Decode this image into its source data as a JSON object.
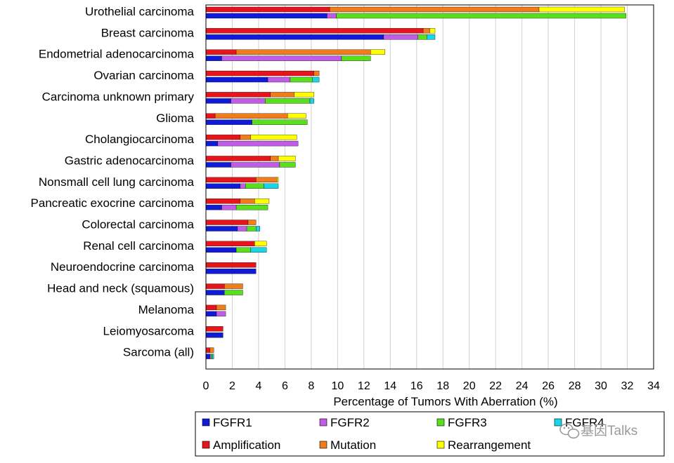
{
  "chart_data": {
    "type": "bar",
    "orientation": "horizontal",
    "stacked": true,
    "xlabel": "Percentage of Tumors With Aberration (%)",
    "ylabel": "",
    "xlim": [
      0,
      34
    ],
    "xticks": [
      0,
      2,
      4,
      6,
      8,
      10,
      12,
      14,
      16,
      18,
      20,
      22,
      24,
      26,
      28,
      30,
      32,
      34
    ],
    "grid": true,
    "legend_position": "bottom",
    "categories": [
      "Urothelial carcinoma",
      "Breast carcinoma",
      "Endometrial adenocarcinoma",
      "Ovarian carcinoma",
      "Carcinoma unknown primary",
      "Glioma",
      "Cholangiocarcinoma",
      "Gastric adenocarcinoma",
      "Nonsmall cell lung carcinoma",
      "Pancreatic exocrine carcinoma",
      "Colorectal carcinoma",
      "Renal cell carcinoma",
      "Neuroendocrine carcinoma",
      "Head and neck (squamous)",
      "Melanoma",
      "Leiomyosarcoma",
      "Sarcoma (all)"
    ],
    "aberration_series": [
      {
        "name": "Amplification",
        "color": "#e8141b",
        "values": [
          9.4,
          16.5,
          2.3,
          8.2,
          4.9,
          0.7,
          2.6,
          4.9,
          3.8,
          2.6,
          3.2,
          3.7,
          3.8,
          1.4,
          0.8,
          1.3,
          0.3
        ]
      },
      {
        "name": "Mutation",
        "color": "#f07c1a",
        "values": [
          15.9,
          0.5,
          10.2,
          0.4,
          1.8,
          5.5,
          0.8,
          0.6,
          1.6,
          1.1,
          0.6,
          0.0,
          0.0,
          1.4,
          0.7,
          0.0,
          0.3
        ]
      },
      {
        "name": "Rearrangement",
        "color": "#ffff00",
        "values": [
          6.5,
          0.4,
          1.1,
          0.0,
          1.5,
          1.4,
          3.5,
          1.3,
          0.1,
          1.1,
          0.0,
          0.9,
          0.0,
          0.0,
          0.0,
          0.0,
          0.0
        ]
      }
    ],
    "gene_series": [
      {
        "name": "FGFR1",
        "color": "#0f1bd6",
        "values": [
          9.2,
          13.5,
          1.2,
          4.7,
          1.9,
          3.5,
          0.9,
          1.9,
          2.6,
          1.2,
          2.4,
          2.3,
          3.8,
          1.4,
          0.8,
          1.3,
          0.3
        ]
      },
      {
        "name": "FGFR2",
        "color": "#c15ce6",
        "values": [
          0.7,
          2.6,
          9.1,
          1.7,
          2.6,
          0.0,
          6.1,
          3.7,
          0.4,
          1.1,
          0.7,
          0.0,
          0.0,
          0.0,
          0.7,
          0.0,
          0.1
        ]
      },
      {
        "name": "FGFR3",
        "color": "#58e01d",
        "values": [
          22.0,
          0.7,
          2.2,
          1.7,
          3.4,
          4.2,
          0.0,
          1.2,
          1.4,
          2.4,
          0.7,
          1.1,
          0.0,
          1.4,
          0.0,
          0.0,
          0.1
        ]
      },
      {
        "name": "FGFR4",
        "color": "#17d6e8",
        "values": [
          0.0,
          0.6,
          0.0,
          0.5,
          0.3,
          0.0,
          0.0,
          0.0,
          1.1,
          0.0,
          0.3,
          1.2,
          0.0,
          0.0,
          0.0,
          0.0,
          0.1
        ]
      }
    ],
    "legend": {
      "row1": [
        {
          "label": "FGFR1",
          "color": "#0f1bd6"
        },
        {
          "label": "FGFR2",
          "color": "#c15ce6"
        },
        {
          "label": "FGFR3",
          "color": "#58e01d"
        },
        {
          "label": "FGFR4",
          "color": "#17d6e8"
        }
      ],
      "row2": [
        {
          "label": "Amplification",
          "color": "#e8141b"
        },
        {
          "label": "Mutation",
          "color": "#f07c1a"
        },
        {
          "label": "Rearrangement",
          "color": "#ffff00"
        }
      ]
    }
  },
  "watermark": {
    "text": "基因Talks",
    "icon": "wechat-icon"
  }
}
